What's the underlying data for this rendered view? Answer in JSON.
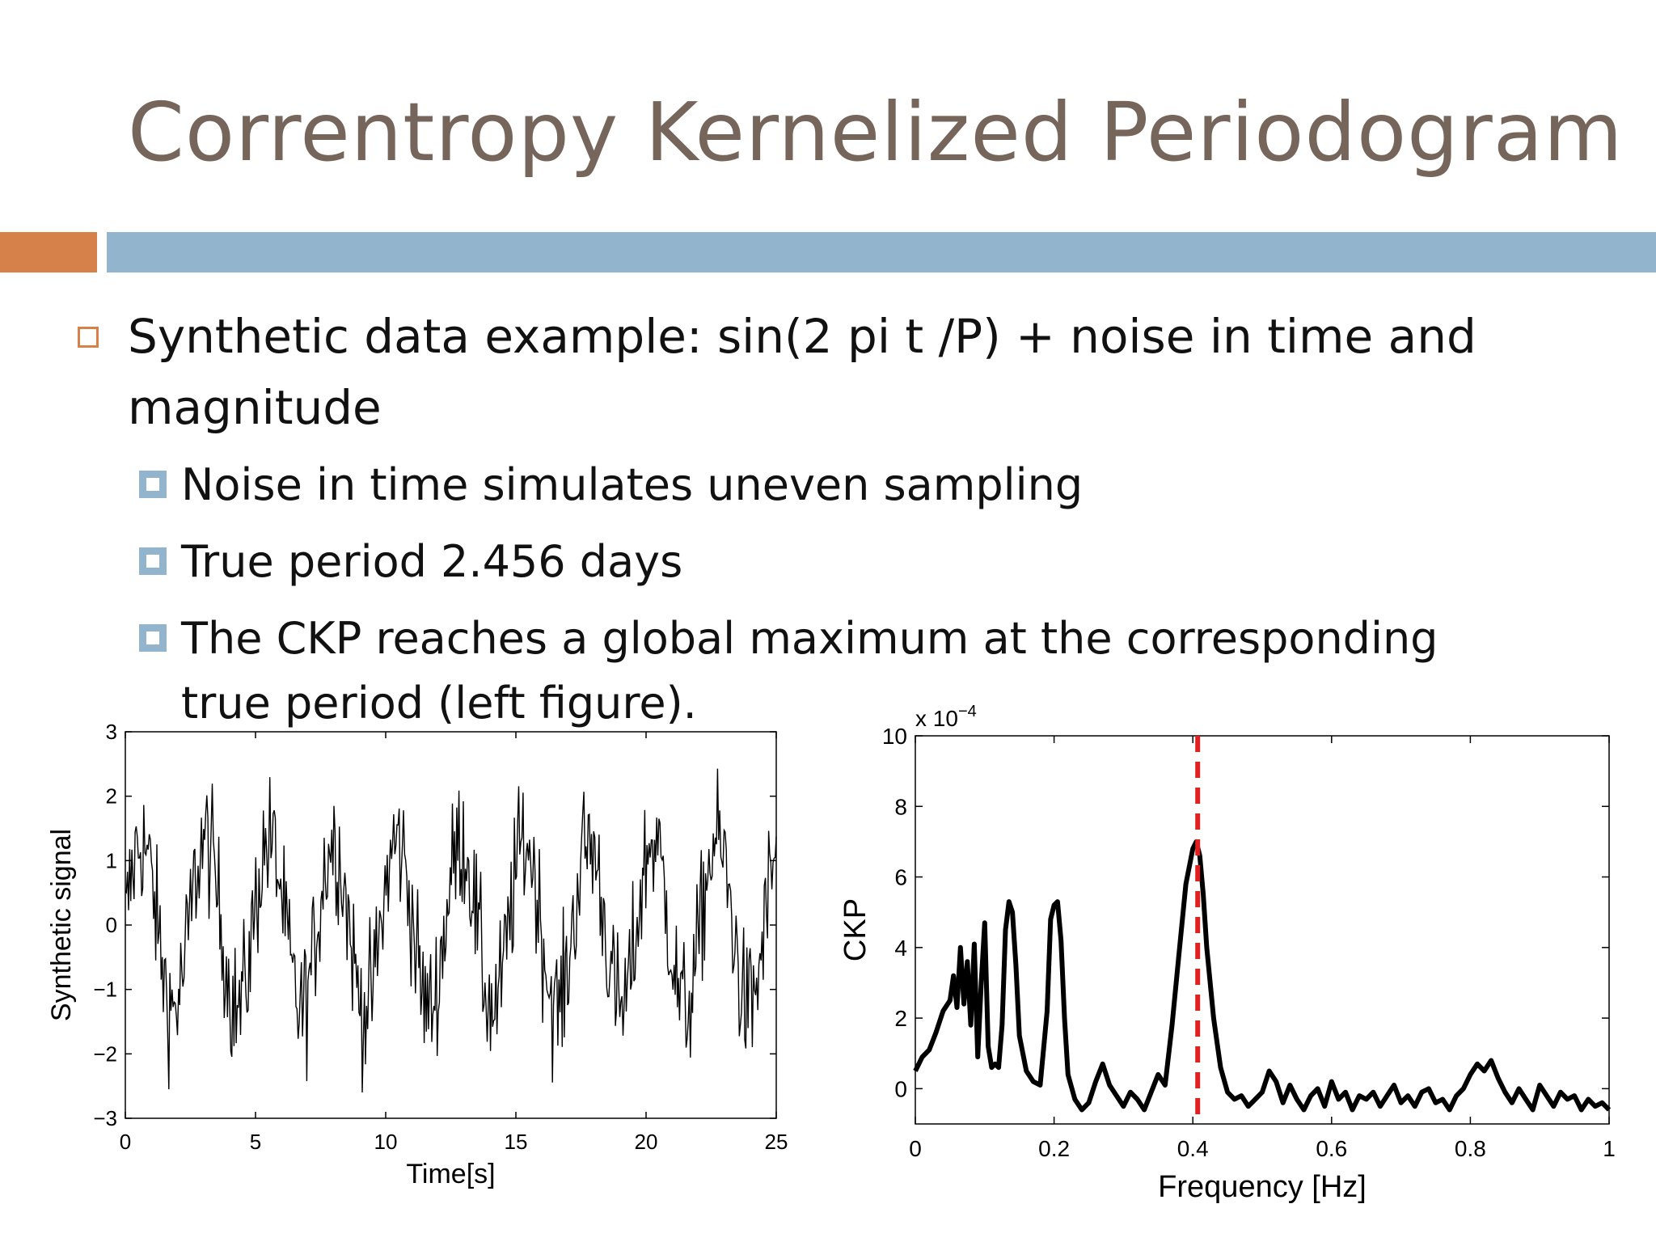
{
  "slide": {
    "title": "Correntropy Kernelized Periodogram",
    "bullet1": "Synthetic data example: sin(2 pi t /P) + noise in time and magnitude",
    "bullets2": [
      "Noise in time simulates uneven sampling",
      "True period 2.456 days",
      "The CKP reaches a global maximum at the corresponding true period (left figure)."
    ]
  },
  "chart_data": [
    {
      "type": "line",
      "xlabel": "Time[s]",
      "ylabel": "Synthetic signal",
      "xlim": [
        0,
        25
      ],
      "ylim": [
        -3,
        3
      ],
      "xticks": [
        0,
        5,
        10,
        15,
        20,
        25
      ],
      "yticks": [
        -3,
        -2,
        -1,
        0,
        1,
        2,
        3
      ],
      "yticklabels": [
        "−3",
        "−2",
        "−1",
        "0",
        "1",
        "2",
        "3"
      ],
      "grid": false,
      "period": 2.456,
      "samples": 600,
      "line_color": "#000000"
    },
    {
      "type": "line",
      "xlabel": "Frequency [Hz]",
      "ylabel": "CKP",
      "xlim": [
        0,
        1
      ],
      "ylim": [
        -1,
        10
      ],
      "xticks": [
        0,
        0.2,
        0.4,
        0.6,
        0.8,
        1
      ],
      "xticklabels": [
        "0",
        "0.2",
        "0.4",
        "0.6",
        "0.8",
        "1"
      ],
      "yticks": [
        0,
        2,
        4,
        6,
        8,
        10
      ],
      "y_multiplier": "x 10",
      "y_exponent": "−4",
      "grid": false,
      "line_color": "#000000",
      "marker_line": {
        "x": 0.407,
        "color": "#e02020",
        "style": "dashed"
      },
      "x": [
        0,
        0.01,
        0.02,
        0.03,
        0.04,
        0.05,
        0.055,
        0.06,
        0.065,
        0.07,
        0.075,
        0.08,
        0.085,
        0.09,
        0.095,
        0.1,
        0.105,
        0.11,
        0.115,
        0.12,
        0.125,
        0.13,
        0.135,
        0.14,
        0.145,
        0.15,
        0.16,
        0.17,
        0.18,
        0.19,
        0.195,
        0.2,
        0.205,
        0.21,
        0.215,
        0.22,
        0.23,
        0.24,
        0.25,
        0.26,
        0.27,
        0.28,
        0.29,
        0.3,
        0.31,
        0.32,
        0.33,
        0.34,
        0.35,
        0.36,
        0.37,
        0.38,
        0.39,
        0.4,
        0.405,
        0.41,
        0.415,
        0.42,
        0.43,
        0.44,
        0.45,
        0.46,
        0.47,
        0.48,
        0.49,
        0.5,
        0.51,
        0.52,
        0.53,
        0.54,
        0.55,
        0.56,
        0.57,
        0.58,
        0.59,
        0.6,
        0.61,
        0.62,
        0.63,
        0.64,
        0.65,
        0.66,
        0.67,
        0.68,
        0.69,
        0.7,
        0.71,
        0.72,
        0.73,
        0.74,
        0.75,
        0.76,
        0.77,
        0.78,
        0.79,
        0.8,
        0.81,
        0.82,
        0.83,
        0.84,
        0.85,
        0.86,
        0.87,
        0.88,
        0.89,
        0.9,
        0.91,
        0.92,
        0.93,
        0.94,
        0.95,
        0.96,
        0.97,
        0.98,
        0.99,
        1.0
      ],
      "y": [
        0.5,
        0.9,
        1.1,
        1.6,
        2.2,
        2.5,
        3.2,
        2.3,
        4.0,
        2.4,
        3.6,
        1.8,
        4.1,
        0.9,
        3.0,
        4.7,
        1.2,
        0.6,
        0.7,
        0.6,
        1.8,
        4.5,
        5.3,
        5.0,
        3.5,
        1.5,
        0.5,
        0.2,
        0.1,
        2.2,
        4.8,
        5.2,
        5.3,
        4.2,
        2.0,
        0.4,
        -0.3,
        -0.6,
        -0.4,
        0.2,
        0.7,
        0.1,
        -0.2,
        -0.5,
        -0.1,
        -0.3,
        -0.6,
        -0.1,
        0.4,
        0.1,
        1.8,
        3.8,
        5.8,
        6.8,
        7.0,
        6.6,
        5.5,
        4.0,
        2.0,
        0.6,
        -0.1,
        -0.3,
        -0.2,
        -0.5,
        -0.3,
        -0.1,
        0.5,
        0.2,
        -0.4,
        0.1,
        -0.3,
        -0.6,
        -0.2,
        0.0,
        -0.5,
        0.2,
        -0.3,
        -0.1,
        -0.6,
        -0.2,
        -0.3,
        -0.1,
        -0.5,
        -0.2,
        0.1,
        -0.4,
        -0.2,
        -0.5,
        -0.1,
        0.0,
        -0.4,
        -0.3,
        -0.6,
        -0.2,
        0.0,
        0.4,
        0.7,
        0.5,
        0.8,
        0.3,
        -0.1,
        -0.4,
        0.0,
        -0.3,
        -0.6,
        0.1,
        -0.2,
        -0.5,
        -0.1,
        -0.3,
        -0.2,
        -0.6,
        -0.3,
        -0.5,
        -0.4,
        -0.6
      ]
    }
  ]
}
